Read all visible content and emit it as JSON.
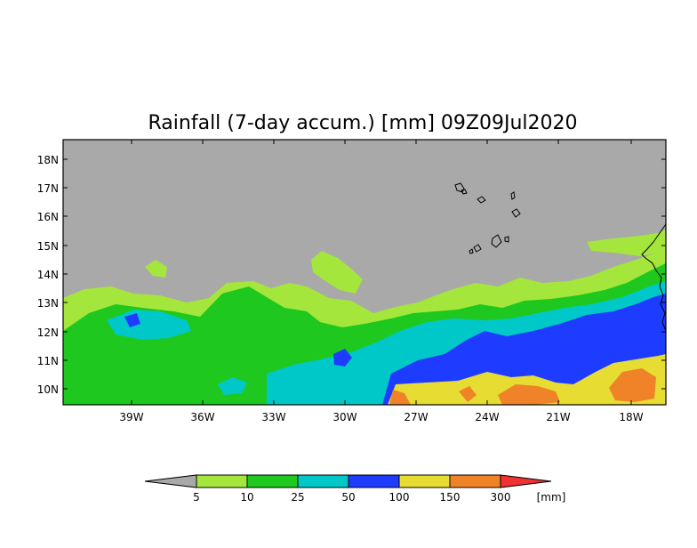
{
  "title": "Rainfall (7-day accum.) [mm] 09Z09Jul2020",
  "lat_labels": [
    "18N",
    "17N",
    "16N",
    "15N",
    "14N",
    "13N",
    "12N",
    "11N",
    "10N"
  ],
  "lon_labels": [
    "39W",
    "36W",
    "33W",
    "30W",
    "27W",
    "24W",
    "21W",
    "18W"
  ],
  "colorbar": {
    "unit": "[mm]",
    "thresholds": [
      "5",
      "10",
      "25",
      "50",
      "100",
      "150",
      "300"
    ],
    "colors": {
      "below_5": "#a9a9a9",
      "5_10": "#a4e63c",
      "10_25": "#1ec81e",
      "25_50": "#00c8c8",
      "50_100": "#1e3cff",
      "100_150": "#e6dc32",
      "150_300": "#f08228",
      "above_300": "#f03232"
    }
  },
  "map": {
    "background": "#a9a9a9",
    "lat_range": [
      "9.5N",
      "18.7N"
    ],
    "lon_range": [
      "41.4W",
      "16.8W"
    ]
  }
}
